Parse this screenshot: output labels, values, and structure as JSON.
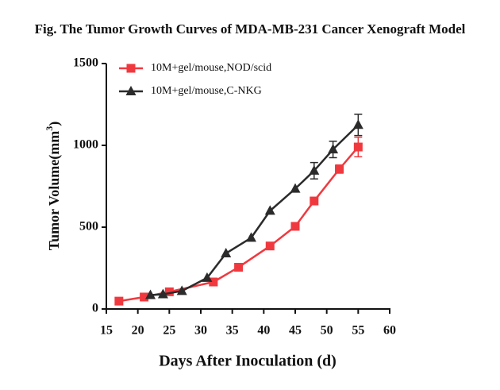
{
  "chart_data": {
    "type": "line",
    "title": "Fig. The Tumor Growth Curves of MDA-MB-231 Cancer Xenograft Model",
    "x_label": "Days After Inoculation (d)",
    "y_label": {
      "text": "Tumor Volume(mm",
      "superscript": "3",
      "suffix": ")"
    },
    "xlim": [
      15,
      60
    ],
    "xticks": [
      15,
      20,
      25,
      30,
      35,
      40,
      45,
      50,
      55,
      60
    ],
    "ylim": [
      0,
      1500
    ],
    "yticks": [
      0,
      500,
      1000,
      1500
    ],
    "grid": false,
    "legend": "upper left",
    "series": [
      {
        "name": "10M+gel/mouse,NOD/scid",
        "color": "#f0393f",
        "marker": "square",
        "x": [
          17,
          21,
          25,
          32,
          36,
          41,
          45,
          48,
          52,
          55
        ],
        "values": [
          48,
          73,
          105,
          165,
          255,
          385,
          505,
          660,
          855,
          990
        ],
        "errors": [
          null,
          null,
          null,
          null,
          null,
          null,
          null,
          20,
          25,
          60
        ]
      },
      {
        "name": "10M+gel/mouse,C-NKG",
        "color": "#2b2b2b",
        "marker": "triangle",
        "x": [
          22,
          24,
          27,
          31,
          34,
          38,
          41,
          45,
          48,
          51,
          55
        ],
        "values": [
          85,
          90,
          110,
          190,
          340,
          435,
          600,
          735,
          845,
          975,
          1125
        ],
        "errors": [
          null,
          null,
          null,
          null,
          null,
          null,
          null,
          null,
          50,
          50,
          65
        ]
      }
    ]
  }
}
